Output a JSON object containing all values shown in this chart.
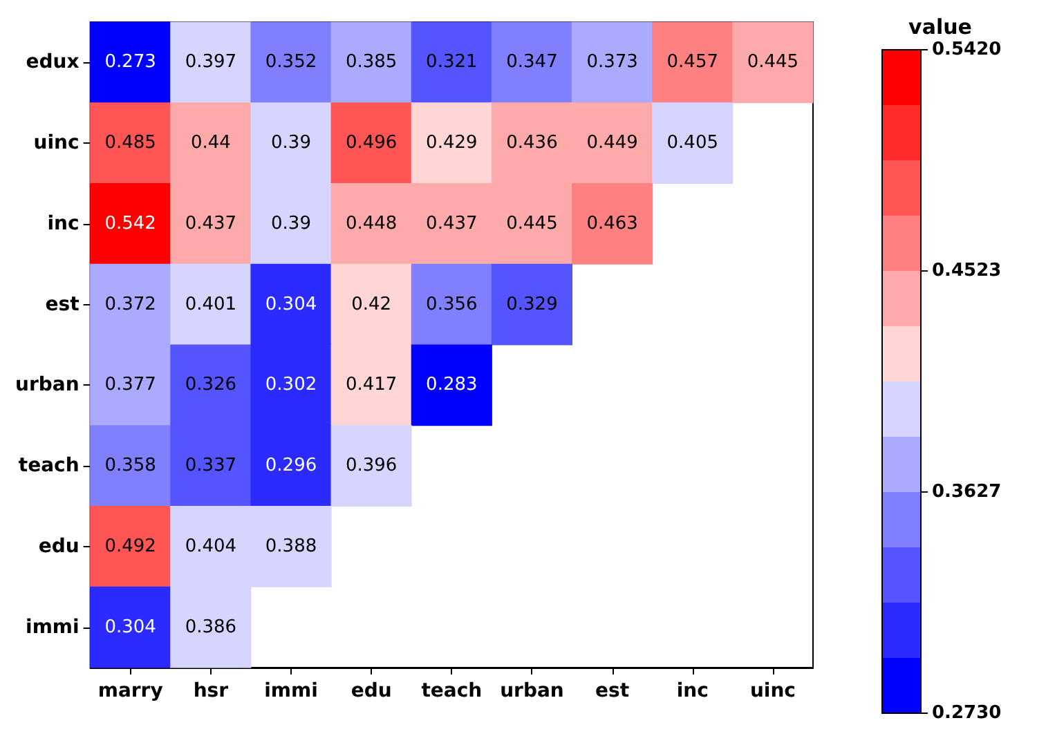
{
  "chart_data": {
    "type": "heatmap",
    "clabel": "value",
    "categories": [
      "marry",
      "hsr",
      "immi",
      "edu",
      "teach",
      "urban",
      "est",
      "inc",
      "uinc"
    ],
    "y_categories": [
      "edux",
      "uinc",
      "inc",
      "est",
      "urban",
      "teach",
      "edu",
      "immi"
    ],
    "cells": [
      [
        0.273,
        0.397,
        0.352,
        0.385,
        0.321,
        0.347,
        0.373,
        0.457,
        0.445
      ],
      [
        0.485,
        0.44,
        0.39,
        0.496,
        0.429,
        0.436,
        0.449,
        0.405,
        null
      ],
      [
        0.542,
        0.437,
        0.39,
        0.448,
        0.437,
        0.445,
        0.463,
        null,
        null
      ],
      [
        0.372,
        0.401,
        0.304,
        0.42,
        0.356,
        0.329,
        null,
        null,
        null
      ],
      [
        0.377,
        0.326,
        0.302,
        0.417,
        0.283,
        null,
        null,
        null,
        null
      ],
      [
        0.358,
        0.337,
        0.296,
        0.396,
        null,
        null,
        null,
        null,
        null
      ],
      [
        0.492,
        0.404,
        0.388,
        null,
        null,
        null,
        null,
        null,
        null
      ],
      [
        0.304,
        0.386,
        null,
        null,
        null,
        null,
        null,
        null,
        null
      ]
    ],
    "data_labels": true,
    "clim": [
      0.273,
      0.542
    ],
    "cticks": [
      {
        "value": 0.273,
        "label": "0.2730"
      },
      0.3627,
      0.4523,
      {
        "value": 0.542,
        "label": "0.5420"
      }
    ]
  }
}
